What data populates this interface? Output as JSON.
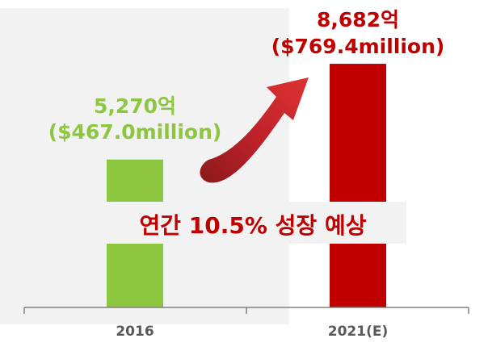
{
  "chart_data": {
    "type": "bar",
    "categories": [
      "2016",
      "2021(E)"
    ],
    "values": [
      5270,
      8682
    ],
    "value_labels": [
      [
        "5,270억",
        "($467.0million)"
      ],
      [
        "8,682억",
        "($769.4million)"
      ]
    ],
    "growth_annotation": "연간 10.5% 성장 예상",
    "ylim": [
      0,
      9000
    ],
    "grid": false,
    "colors": {
      "bar_2016": "#8dc63f",
      "bar_2021": "#c00000",
      "label_2016": "#8dc63f",
      "label_2021": "#c00000",
      "annotation": "#c00000",
      "arrow": "#c0222a",
      "panel_bg": "#f2f2f2",
      "axis": "#808080",
      "tick_label": "#595959"
    }
  }
}
